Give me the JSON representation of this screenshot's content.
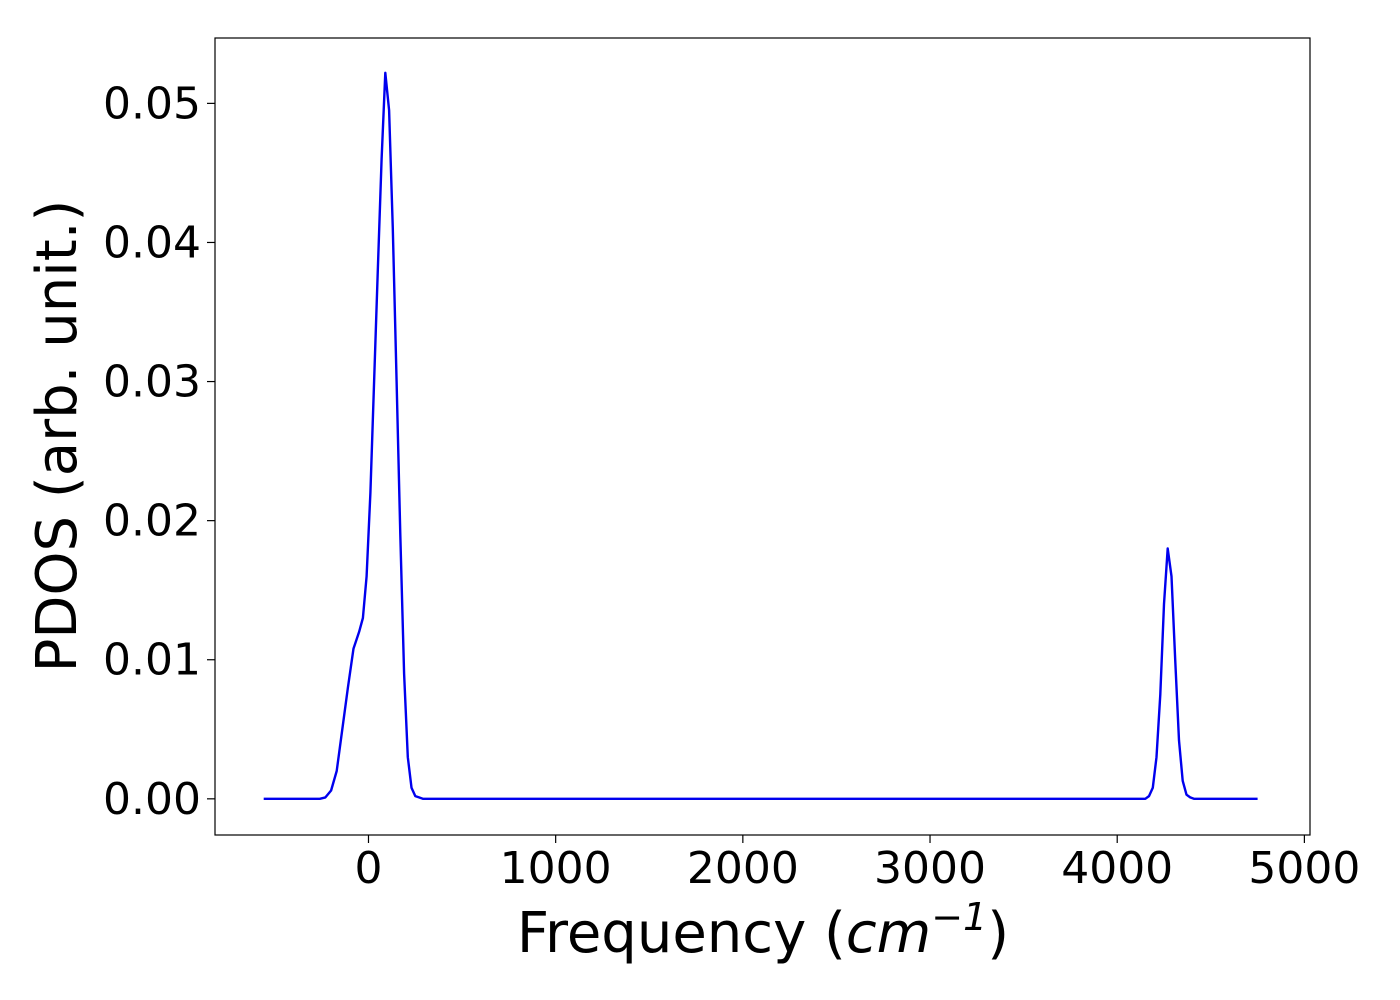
{
  "chart_data": {
    "type": "line",
    "title": "",
    "xlabel": {
      "prefix": "Frequency (",
      "unit": "cm",
      "exponent": "−1",
      "suffix": ")"
    },
    "ylabel": "PDOS (arb. unit.)",
    "xlim": [
      -820,
      5030
    ],
    "ylim": [
      -0.0026,
      0.0547
    ],
    "xticks": [
      0,
      1000,
      2000,
      3000,
      4000,
      5000
    ],
    "xtick_labels": [
      "0",
      "1000",
      "2000",
      "3000",
      "4000",
      "5000"
    ],
    "yticks": [
      0.0,
      0.01,
      0.02,
      0.03,
      0.04,
      0.05
    ],
    "ytick_labels": [
      "0.00",
      "0.01",
      "0.02",
      "0.03",
      "0.04",
      "0.05"
    ],
    "grid": false,
    "legend": "none",
    "series": [
      {
        "color": "#0000ee",
        "x": [
          -560,
          -260,
          -230,
          -200,
          -170,
          -140,
          -110,
          -80,
          -50,
          -30,
          -10,
          10,
          30,
          50,
          70,
          90,
          110,
          130,
          150,
          170,
          190,
          210,
          230,
          250,
          270,
          290,
          310,
          340,
          380,
          420,
          1000,
          2000,
          3000,
          4000,
          4150,
          4170,
          4190,
          4210,
          4230,
          4250,
          4270,
          4290,
          4310,
          4330,
          4350,
          4370,
          4390,
          4410,
          4430,
          4460,
          4500,
          4750
        ],
        "y": [
          0,
          0,
          0.0001,
          0.0006,
          0.002,
          0.005,
          0.008,
          0.0108,
          0.012,
          0.013,
          0.016,
          0.022,
          0.03,
          0.038,
          0.046,
          0.0522,
          0.0495,
          0.041,
          0.03,
          0.019,
          0.009,
          0.003,
          0.0008,
          0.0002,
          0.0001,
          0,
          0,
          0,
          0,
          0,
          0,
          0,
          0,
          0,
          0,
          0.0002,
          0.0008,
          0.003,
          0.0075,
          0.014,
          0.018,
          0.016,
          0.01,
          0.0042,
          0.0013,
          0.0003,
          0.0001,
          0,
          0,
          0,
          0,
          0
        ]
      }
    ]
  }
}
